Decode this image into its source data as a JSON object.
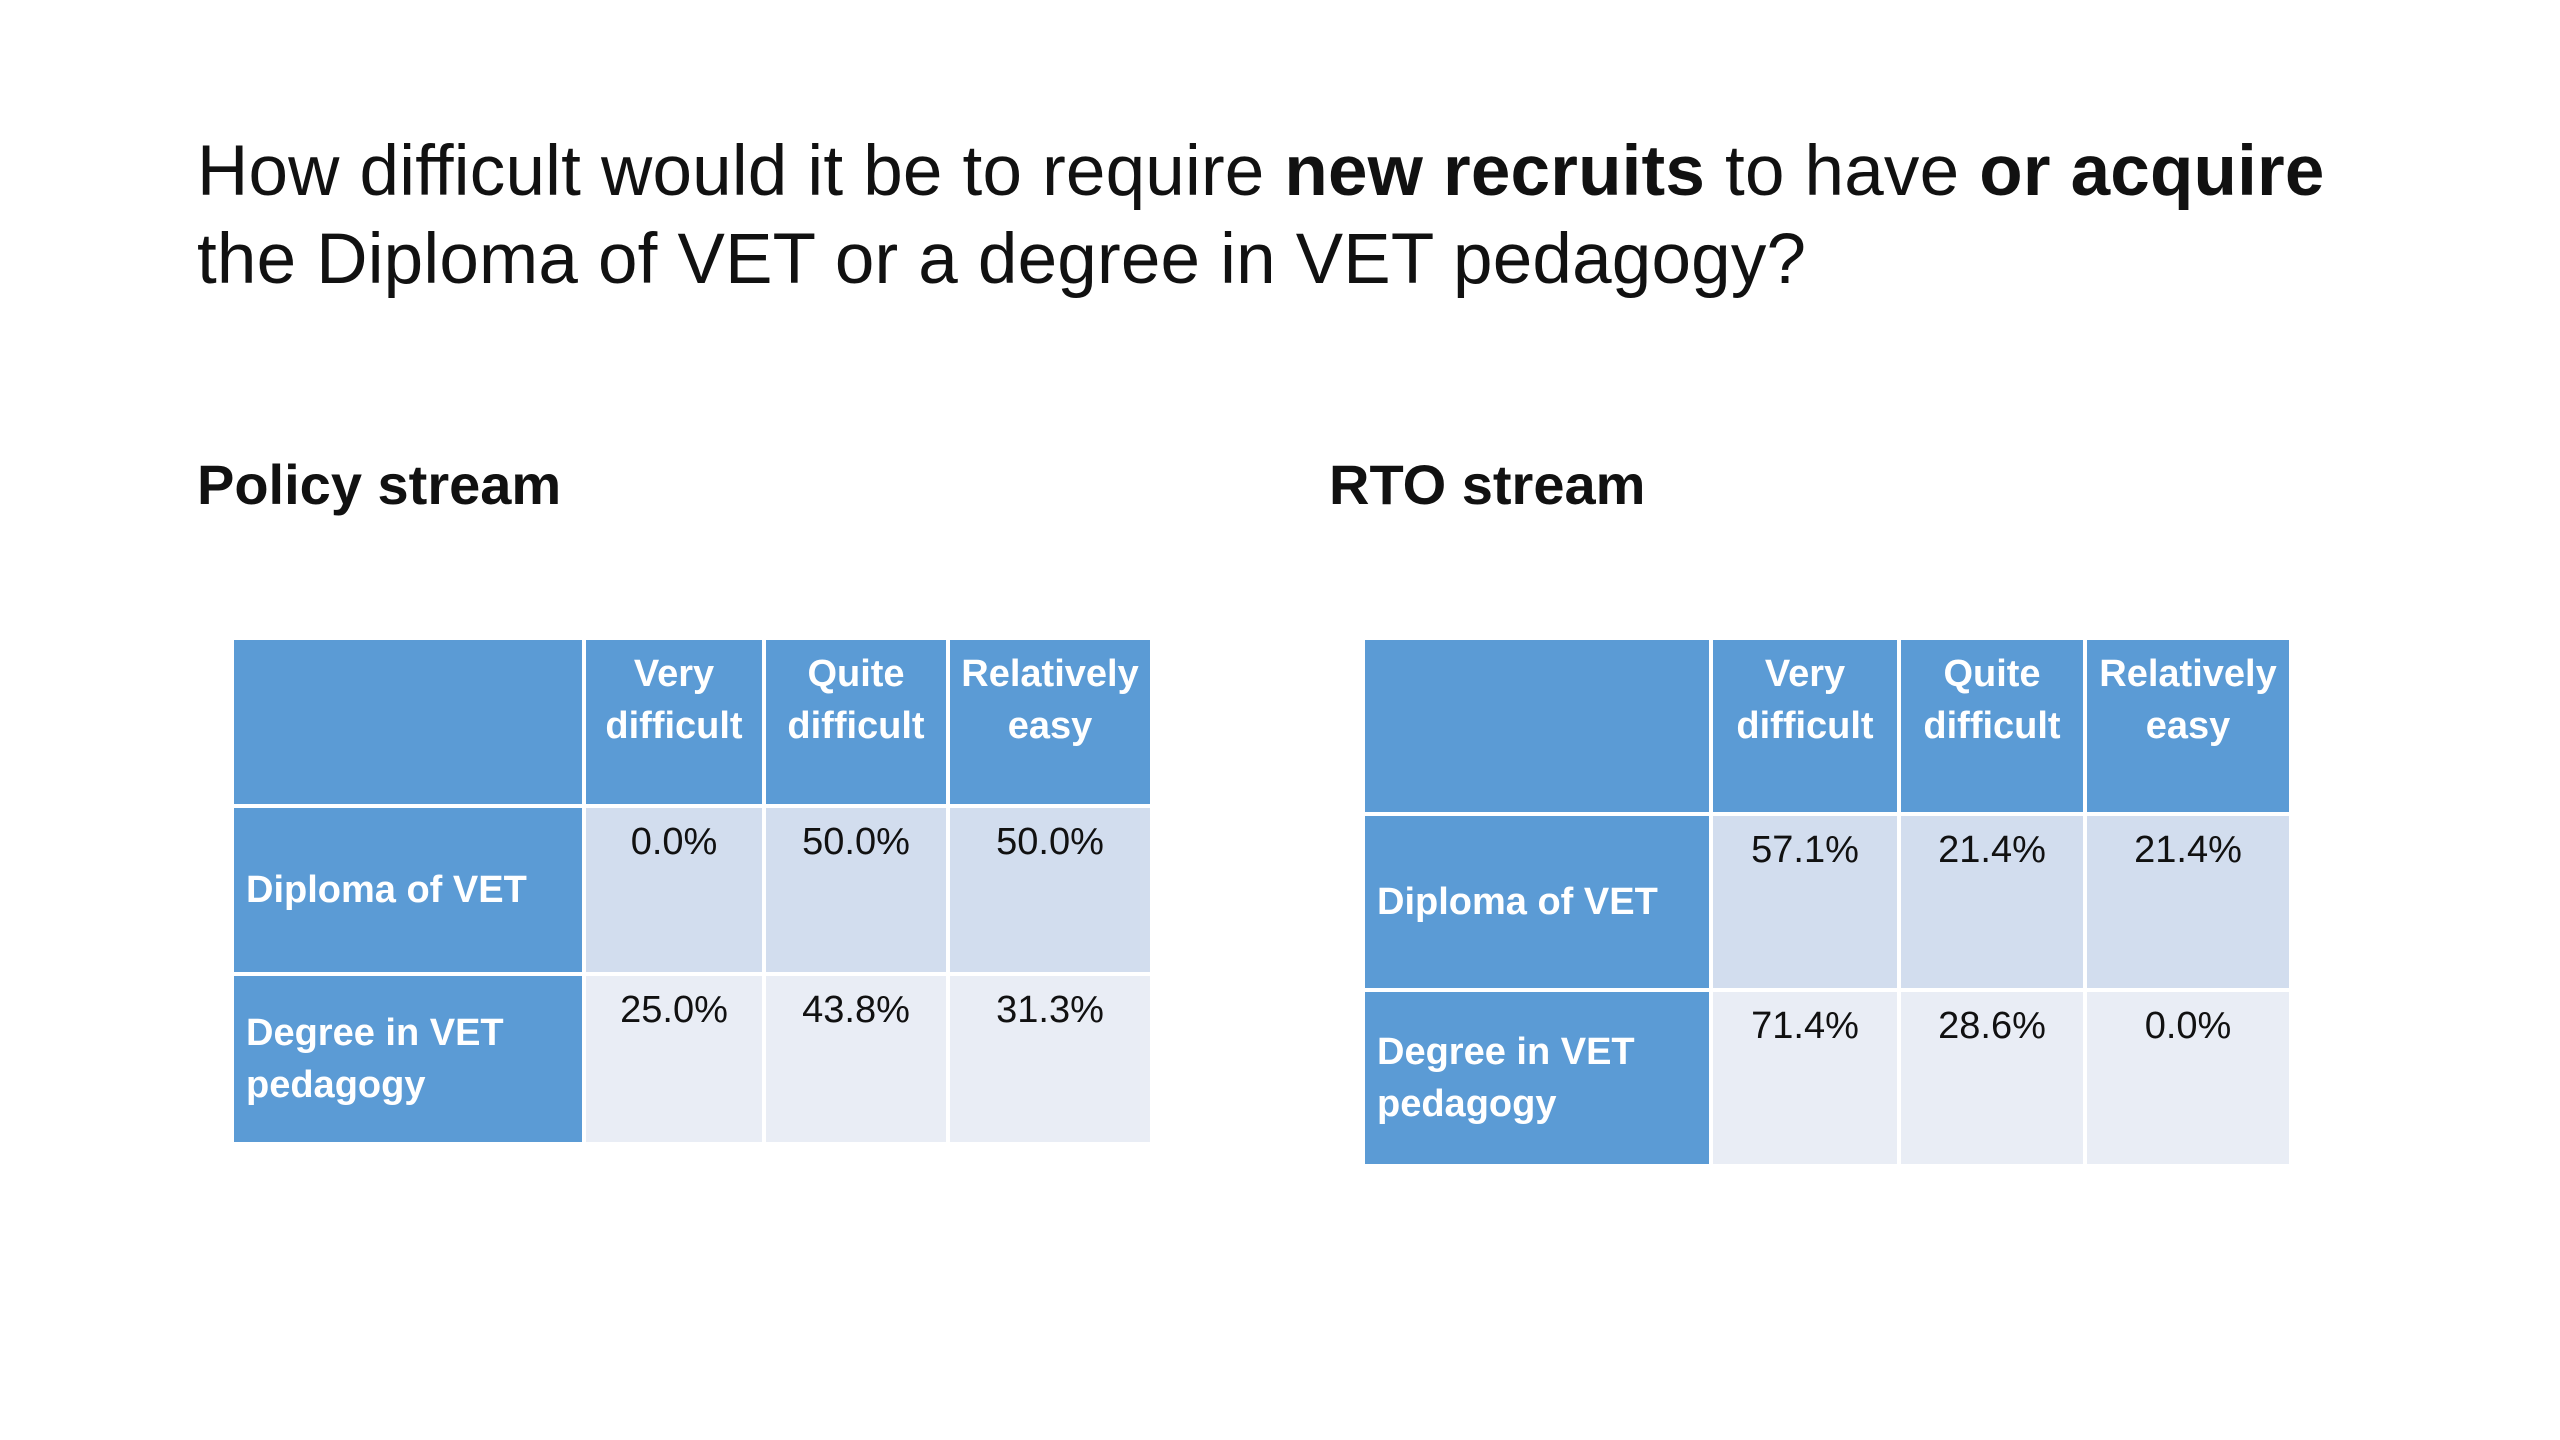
{
  "title": {
    "part1": "How difficult would it be to require ",
    "bold1": "new recruits",
    "part2": " to have ",
    "bold2": "or acquire",
    "line2": "the Diploma of VET or a degree in VET pedagogy?"
  },
  "policy": {
    "heading": "Policy stream",
    "columns": [
      {
        "line1": "Very",
        "line2": "difficult"
      },
      {
        "line1": "Quite",
        "line2": "difficult"
      },
      {
        "line1": "Relatively",
        "line2": "easy"
      }
    ],
    "rows": [
      {
        "label_line1": "Diploma of VET",
        "label_line2": "",
        "values": [
          "0.0%",
          "50.0%",
          "50.0%"
        ]
      },
      {
        "label_line1": "Degree in VET",
        "label_line2": "pedagogy",
        "values": [
          "25.0%",
          "43.8%",
          "31.3%"
        ]
      }
    ]
  },
  "rto": {
    "heading": "RTO stream",
    "columns": [
      {
        "line1": "Very",
        "line2": "difficult"
      },
      {
        "line1": "Quite",
        "line2": "difficult"
      },
      {
        "line1": "Relatively",
        "line2": "easy"
      }
    ],
    "rows": [
      {
        "label_line1": "Diploma of VET",
        "label_line2": "",
        "values": [
          "57.1%",
          "21.4%",
          "21.4%"
        ]
      },
      {
        "label_line1": "Degree in VET",
        "label_line2": "pedagogy",
        "values": [
          "71.4%",
          "28.6%",
          "0.0%"
        ]
      }
    ]
  },
  "colors": {
    "header_blue": "#5b9bd5",
    "row_light_1": "#d2ddee",
    "row_light_2": "#e9edf5"
  }
}
